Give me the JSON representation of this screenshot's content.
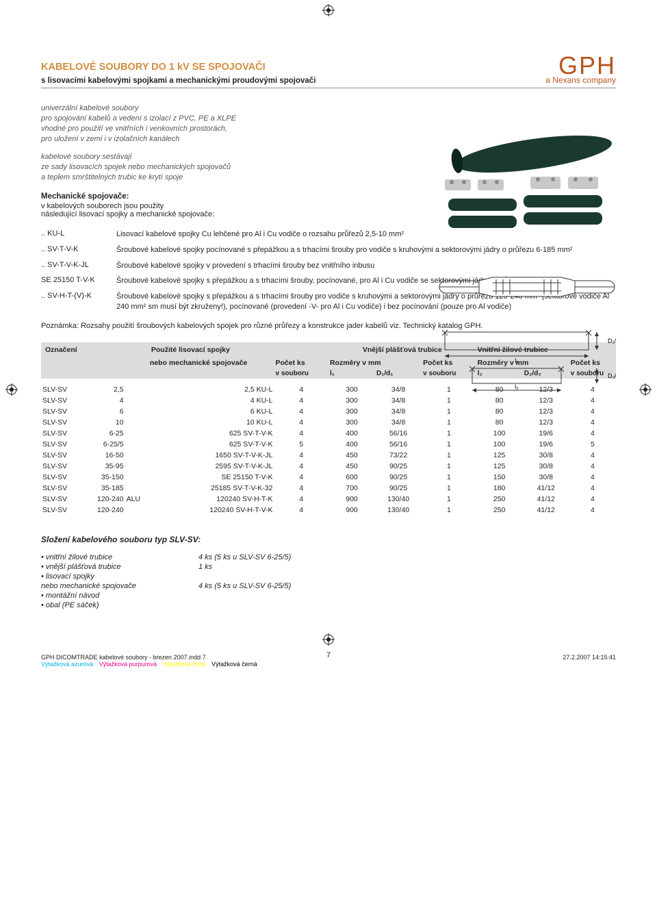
{
  "crop_mark_color": "#231f20",
  "page_number": "7",
  "logo": {
    "brand": "GPH",
    "tagline": "a Nexans company",
    "color": "#b8551e"
  },
  "title": {
    "text": "KABELOVÉ SOUBORY DO 1 kV SE SPOJOVAČI",
    "color": "#d38d3e"
  },
  "subtitle": "s lisovacími kabelovými spojkami a mechanickými proudovými spojovači",
  "intro": {
    "p1": "univerzální kabelové soubory\npro spojování kabelů a vedení s izolací z PVC, PE a XLPE\nvhodné pro použití ve vnitřních i venkovních prostorách,\npro uložení v zemi i v izolačních kanálech",
    "p2": "kabelové soubory sestávají\nze sady lisovacích spojek nebo mechanických spojovačů\na teplem smrštitelných trubic ke krytí spoje"
  },
  "mech": {
    "heading": "Mechanické spojovače:",
    "lead": "v kabelových souborech jsou použity\nnásledující lisovací spojky a mechanické spojovače:",
    "rows": [
      {
        "code": ".. KU-L",
        "desc": "Lisovací kabelové spojky Cu lehčené pro Al i Cu vodiče o rozsahu průřezů 2,5-10 mm²"
      },
      {
        "code": ".. SV-T-V-K",
        "desc": "Šroubové kabelové spojky pocínované s přepážkou a s trhacími šrouby pro vodiče s kruhovými a sektorovými jádry o průřezu 6-185 mm²"
      },
      {
        "code": ".. SV-T-V-K-JL",
        "desc": "Šroubové kabelové spojky v provedení s trhacími šrouby bez vnitřního inbusu"
      },
      {
        "code": "SE 25150 T-V-K",
        "desc": "Šroubové kabelové spojky s přepážkou a s trhacími šrouby, pocínované, pro Al i Cu vodiče se sektorovými jádry o průřezu 25-150 mm²"
      },
      {
        "code": ".. SV-H-T-(V)-K",
        "desc": "Šroubové kabelové spojky s přepážkou a s trhacími šrouby pro vodiče s kruhovými a sektorovými jádry o průřezu 120-240 mm² (sektorové vodiče Al 240 mm² sm musí být zkruženy!), pocínované (provedení -V- pro Al i Cu vodiče) i bez pocínování (pouze pro Al vodiče)"
      }
    ]
  },
  "note": "Poznámka: Rozsahy použití šroubových kabelových spojek pro různé průřezy a konstrukce jader kabelů viz. Technický katalog GPH.",
  "table": {
    "head": {
      "h1": "Označení",
      "h2": "Použité lisovací spojky",
      "h2b": "nebo mechanické spojovače",
      "h3": "Počet ks",
      "h3b": "v souboru",
      "h4": "Vnější plášťová trubice",
      "h4a": "Rozměry v mm",
      "h4a1": "l₁",
      "h4a2": "D₁/d₁",
      "h4b": "Počet ks",
      "h4b1": "v souboru",
      "h5": "Vnitřní žilové trubice",
      "h5a": "Rozměry v mm",
      "h5a1": "l₂",
      "h5a2": "D₂/d₂",
      "h5b": "Počet ks",
      "h5b1": "v souboru"
    },
    "rows": [
      [
        "SLV-SV",
        "2,5",
        "",
        "2,5 KU-L",
        "4",
        "300",
        "34/8",
        "1",
        "80",
        "12/3",
        "4"
      ],
      [
        "SLV-SV",
        "4",
        "",
        "4 KU-L",
        "4",
        "300",
        "34/8",
        "1",
        "80",
        "12/3",
        "4"
      ],
      [
        "SLV-SV",
        "6",
        "",
        "6 KU-L",
        "4",
        "300",
        "34/8",
        "1",
        "80",
        "12/3",
        "4"
      ],
      [
        "SLV-SV",
        "10",
        "",
        "10 KU-L",
        "4",
        "300",
        "34/8",
        "1",
        "80",
        "12/3",
        "4"
      ],
      [
        "SLV-SV",
        "6-25",
        "",
        "625 SV-T-V-K",
        "4",
        "400",
        "56/16",
        "1",
        "100",
        "19/6",
        "4"
      ],
      [
        "SLV-SV",
        "6-25/5",
        "",
        "625 SV-T-V-K",
        "5",
        "400",
        "56/16",
        "1",
        "100",
        "19/6",
        "5"
      ],
      [
        "SLV-SV",
        "16-50",
        "",
        "1650 SV-T-V-K-JL",
        "4",
        "450",
        "73/22",
        "1",
        "125",
        "30/8",
        "4"
      ],
      [
        "SLV-SV",
        "35-95",
        "",
        "2595 SV-T-V-K-JL",
        "4",
        "450",
        "90/25",
        "1",
        "125",
        "30/8",
        "4"
      ],
      [
        "SLV-SV",
        "35-150",
        "",
        "SE 25150 T-V-K",
        "4",
        "600",
        "90/25",
        "1",
        "150",
        "30/8",
        "4"
      ],
      [
        "SLV-SV",
        "35-185",
        "",
        "25185 SV-T-V-K-32",
        "4",
        "700",
        "90/25",
        "1",
        "180",
        "41/12",
        "4"
      ],
      [
        "SLV-SV",
        "120-240",
        "ALU",
        "120240 SV-H-T-K",
        "4",
        "900",
        "130/40",
        "1",
        "250",
        "41/12",
        "4"
      ],
      [
        "SLV-SV",
        "120-240",
        "",
        "120240 SV-H-T-V-K",
        "4",
        "900",
        "130/40",
        "1",
        "250",
        "41/12",
        "4"
      ]
    ]
  },
  "composition": {
    "title": "Složení kabelového souboru typ SLV-SV:",
    "rows": [
      {
        "k": "• vnitřní žilové trubice",
        "v": "4 ks (5 ks u SLV-SV 6-25/5)"
      },
      {
        "k": "• vnější plášťová trubice",
        "v": "1 ks"
      },
      {
        "k": "• lisovací spojky",
        "v": ""
      },
      {
        "k": "  nebo mechanické spojovače",
        "v": "4 ks (5 ks u SLV-SV 6-25/5)",
        "sub": true
      },
      {
        "k": "• montážní návod",
        "v": ""
      },
      {
        "k": "• obal (PE sáček)",
        "v": ""
      }
    ]
  },
  "footer": {
    "file": "GPH DICOMTRADE kabelové soubory - brezen 2007.indd   7",
    "swatches": {
      "cyan": "Výtažková azurová",
      "mag": "Výtažková purpurová",
      "yel": "Výtažková žlutá",
      "blk": "Výtažková černá"
    },
    "timestamp": "27.2.2007   14:15:41"
  },
  "dim_labels": {
    "l1": "l₁",
    "l2": "l₂",
    "D1d1": "D₁/d₁",
    "D2d2": "D₂/d₂"
  },
  "imagery": {
    "product_colors": {
      "sleeve": "#1a3a2f",
      "clamp_body": "#c8c8c8",
      "clamp_bolt": "#888"
    },
    "diag_stroke": "#333"
  }
}
